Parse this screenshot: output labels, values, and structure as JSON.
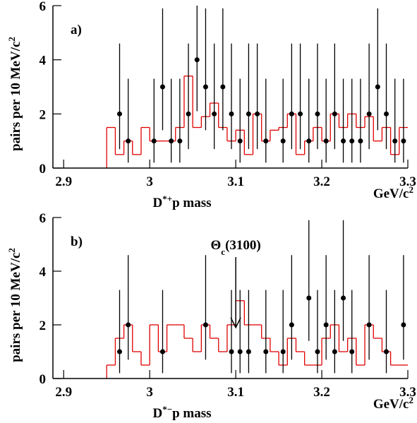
{
  "chart_data": [
    {
      "type": "histogram",
      "panel_label": "a)",
      "ylabel": [
        "pairs per 10 MeV/c",
        "2"
      ],
      "xlabel": [
        "D",
        "*+",
        "p mass"
      ],
      "xunit": [
        "GeV/c",
        "2"
      ],
      "xlim": [
        2.8875,
        3.3
      ],
      "ylim": [
        0,
        6
      ],
      "xticks": [
        2.9,
        3,
        3.1,
        3.2,
        3.3
      ],
      "yticks": [
        0,
        2,
        4,
        6
      ],
      "color": "#e00000",
      "bins": [
        2.95,
        2.96,
        2.97,
        2.98,
        2.99,
        3.0,
        3.01,
        3.02,
        3.03,
        3.04,
        3.05,
        3.06,
        3.07,
        3.08,
        3.09,
        3.1,
        3.11,
        3.12,
        3.13,
        3.14,
        3.15,
        3.16,
        3.17,
        3.18,
        3.19,
        3.2,
        3.21,
        3.22,
        3.23,
        3.24,
        3.25,
        3.26,
        3.27,
        3.28,
        3.29,
        3.3
      ],
      "counts": [
        1.5,
        0.5,
        1,
        0.5,
        1.5,
        1,
        1,
        1,
        1.5,
        3.4,
        1.5,
        1.9,
        2.4,
        1.5,
        1,
        1.4,
        0.5,
        2,
        1,
        1.4,
        1.5,
        2,
        0.5,
        1,
        1.5,
        1,
        2,
        1.5,
        2,
        1.5,
        1.9,
        1,
        1.5,
        0.5,
        1.5
      ],
      "points": {
        "x": [
          2.965,
          2.975,
          3.005,
          3.015,
          3.025,
          3.035,
          3.045,
          3.055,
          3.065,
          3.075,
          3.085,
          3.095,
          3.105,
          3.115,
          3.125,
          3.135,
          3.155,
          3.165,
          3.175,
          3.185,
          3.195,
          3.205,
          3.215,
          3.225,
          3.235,
          3.245,
          3.255,
          3.265,
          3.275,
          3.285,
          3.295
        ],
        "y": [
          2,
          1,
          1,
          3,
          1,
          1,
          2,
          4,
          3,
          2,
          3,
          2,
          1,
          2,
          2,
          1,
          1,
          2,
          2,
          1,
          2,
          1,
          2,
          1,
          1,
          1,
          2,
          3,
          2,
          1,
          1
        ],
        "err_low": [
          1.3,
          0.8,
          0.8,
          1.6,
          0.8,
          0.8,
          1.3,
          1.9,
          1.6,
          1.3,
          1.6,
          1.3,
          0.8,
          1.3,
          1.3,
          0.8,
          0.8,
          1.3,
          1.3,
          0.8,
          1.3,
          0.8,
          1.3,
          0.8,
          0.8,
          0.8,
          1.3,
          1.6,
          1.3,
          0.8,
          0.8
        ],
        "err_high": [
          2.6,
          2.3,
          2.3,
          2.9,
          2.3,
          2.3,
          2.6,
          3.2,
          2.9,
          2.6,
          2.9,
          2.6,
          2.3,
          2.6,
          2.6,
          2.3,
          2.3,
          2.6,
          2.6,
          2.3,
          2.6,
          2.3,
          2.6,
          2.3,
          2.3,
          2.3,
          2.6,
          2.9,
          2.6,
          2.3,
          2.3
        ]
      }
    },
    {
      "type": "histogram",
      "panel_label": "b)",
      "ylabel": [
        "pairs per 10 MeV/c",
        "2"
      ],
      "xlabel": [
        "D",
        "*−",
        "p mass"
      ],
      "xunit": [
        "GeV/c",
        "2"
      ],
      "xlim": [
        2.8875,
        3.3
      ],
      "ylim": [
        0,
        6
      ],
      "xticks": [
        2.9,
        3,
        3.1,
        3.2,
        3.3
      ],
      "yticks": [
        0,
        2,
        4,
        6
      ],
      "color": "#e00000",
      "annotation": {
        "text": [
          "Θ",
          "c",
          "(3100)"
        ],
        "x": 3.1,
        "y": 1.9
      },
      "bins": [
        2.95,
        2.96,
        2.97,
        2.98,
        2.99,
        3.0,
        3.01,
        3.02,
        3.03,
        3.04,
        3.05,
        3.06,
        3.07,
        3.08,
        3.09,
        3.1,
        3.11,
        3.12,
        3.13,
        3.14,
        3.15,
        3.16,
        3.17,
        3.18,
        3.19,
        3.2,
        3.21,
        3.22,
        3.23,
        3.24,
        3.25,
        3.26,
        3.27,
        3.28,
        3.29,
        3.3
      ],
      "counts": [
        0.5,
        1.5,
        2,
        1,
        0.5,
        2,
        1,
        2,
        2,
        1.5,
        1,
        2,
        1.5,
        1,
        2,
        2.9,
        2,
        2,
        1.5,
        1,
        0.5,
        1.5,
        1,
        0.5,
        0.5,
        1.5,
        2,
        1,
        1.5,
        0.5,
        2,
        1.5,
        1,
        0.5,
        0.5
      ],
      "points": {
        "x": [
          2.965,
          2.975,
          3.015,
          3.065,
          3.095,
          3.105,
          3.115,
          3.135,
          3.155,
          3.165,
          3.185,
          3.195,
          3.205,
          3.215,
          3.225,
          3.235,
          3.255,
          3.275,
          3.295
        ],
        "y": [
          1,
          2,
          1,
          2,
          1,
          1,
          1,
          1,
          1,
          2,
          3,
          1,
          2,
          1,
          3,
          1,
          2,
          1,
          2
        ],
        "err_low": [
          0.8,
          1.3,
          0.8,
          1.3,
          0.8,
          0.8,
          0.8,
          0.8,
          0.8,
          1.3,
          1.6,
          0.8,
          1.3,
          0.8,
          1.6,
          0.8,
          1.3,
          0.8,
          1.3
        ],
        "err_high": [
          2.3,
          2.6,
          2.3,
          2.6,
          2.3,
          2.3,
          2.3,
          2.3,
          2.3,
          2.6,
          2.9,
          2.3,
          2.6,
          2.3,
          2.9,
          2.3,
          2.6,
          2.3,
          2.6
        ]
      }
    }
  ]
}
